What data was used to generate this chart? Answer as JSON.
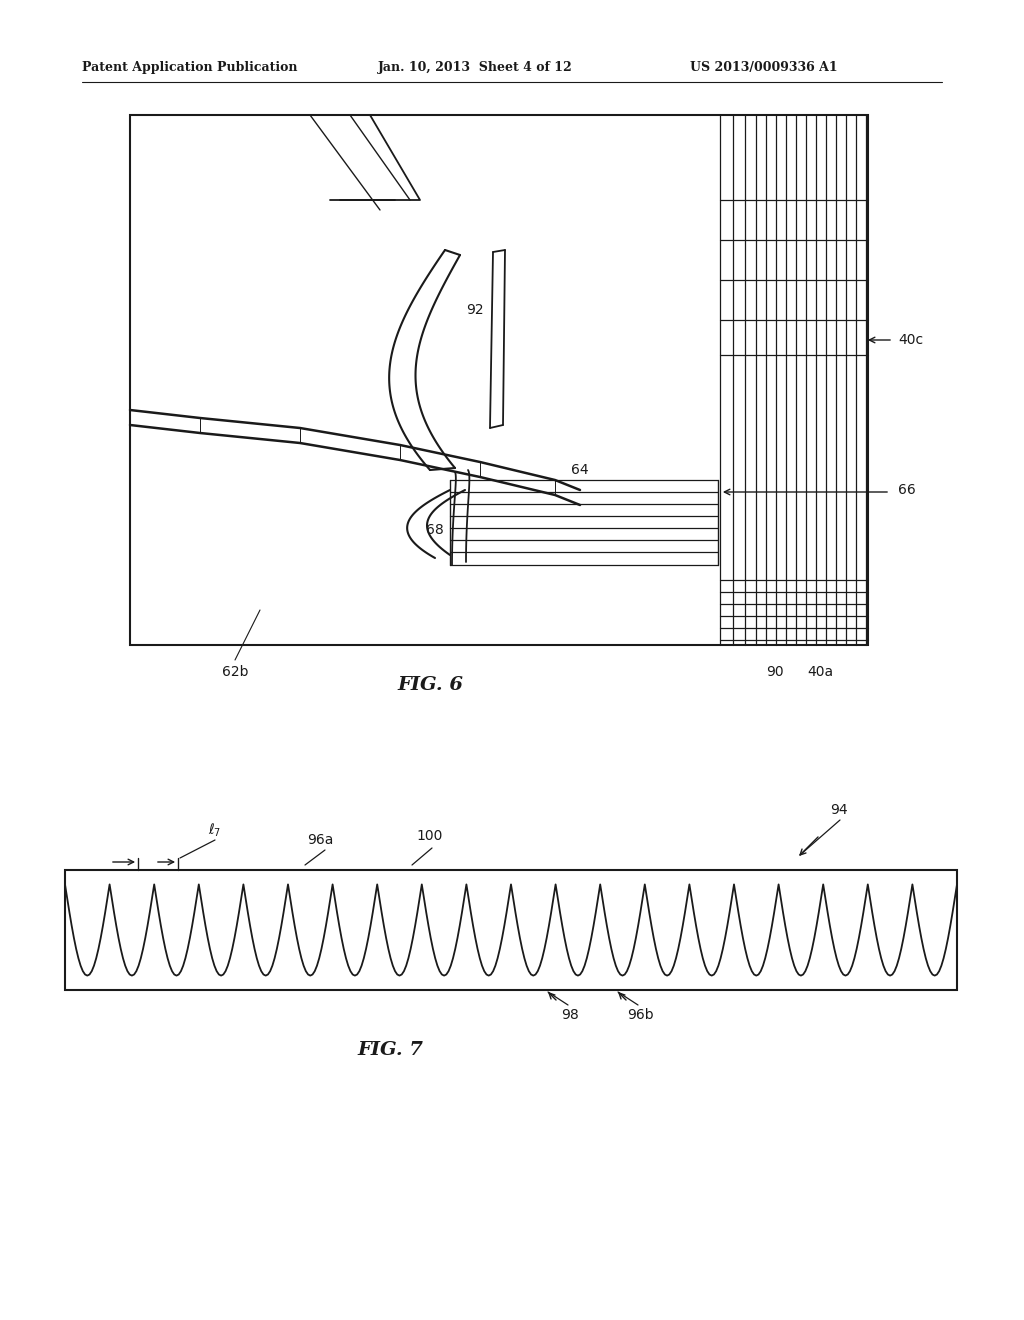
{
  "bg_color": "#ffffff",
  "header_left": "Patent Application Publication",
  "header_mid": "Jan. 10, 2013  Sheet 4 of 12",
  "header_right": "US 2013/0009336 A1",
  "fig6_label": "FIG. 6",
  "fig7_label": "FIG. 7",
  "line_color": "#1a1a1a"
}
